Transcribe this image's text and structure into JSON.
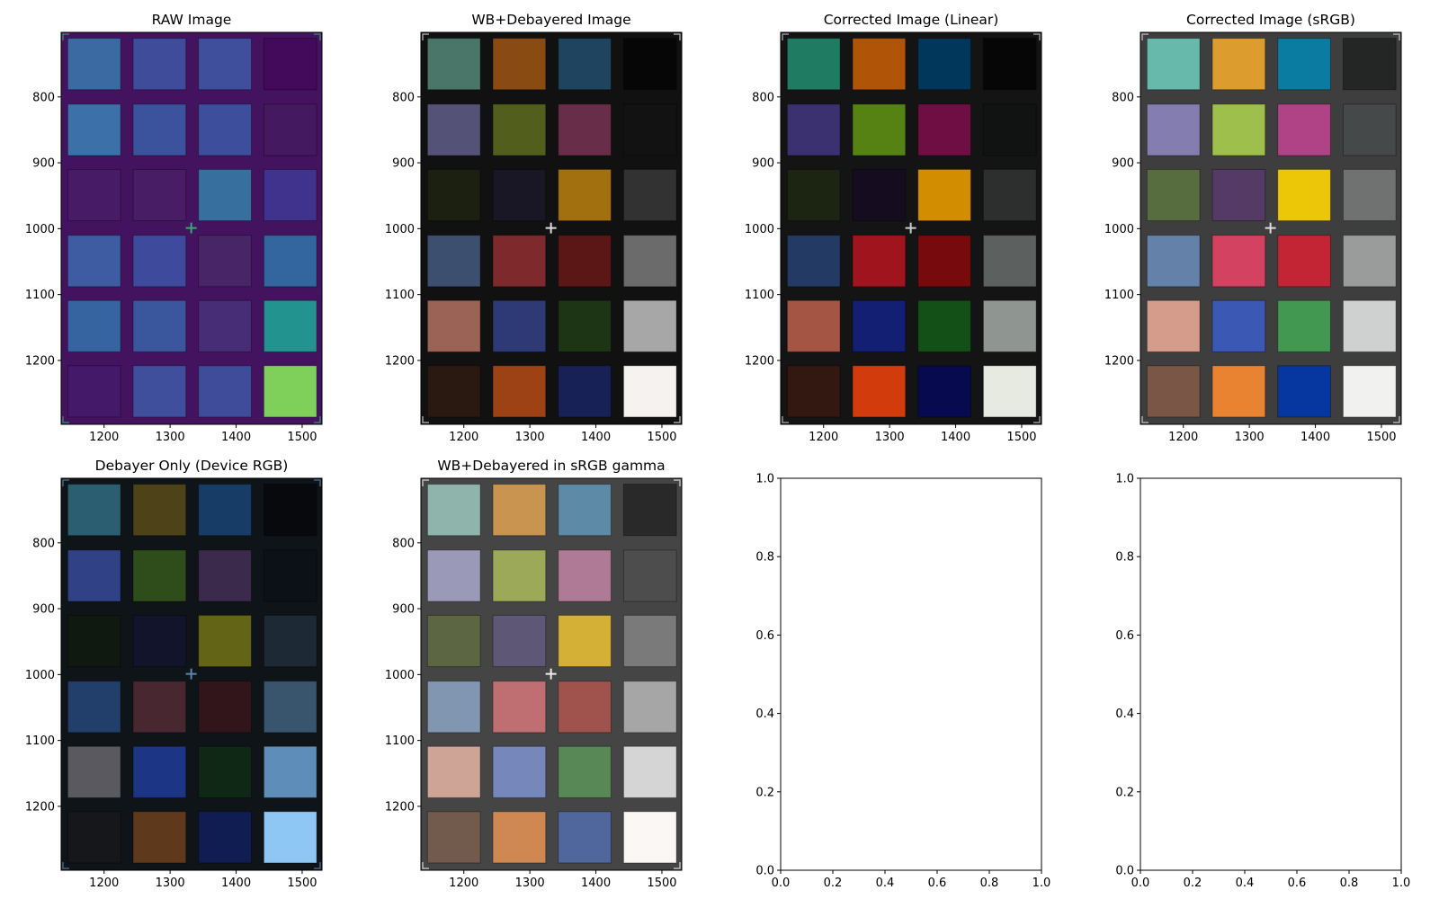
{
  "chart_data": [
    {
      "type": "heatmap",
      "title": "RAW Image",
      "x_ticks": [
        1200,
        1300,
        1400,
        1500
      ],
      "y_ticks": [
        800,
        900,
        1000,
        1100,
        1200
      ],
      "xlim": [
        1135,
        1530
      ],
      "ylim": [
        1297,
        702
      ],
      "background": "#44135f",
      "marker": {
        "x": 1332,
        "y": 999,
        "color": "#3aa57a"
      },
      "swatch_colors": [
        [
          "#3b6aa3",
          "#3f4c9a",
          "#3f4f9c",
          "#430a5c"
        ],
        [
          "#3b70a8",
          "#3b529d",
          "#3d4f9c",
          "#44195f"
        ],
        [
          "#481b66",
          "#481d66",
          "#37709f",
          "#40338d"
        ],
        [
          "#3d5ca1",
          "#3e4a9b",
          "#472567",
          "#33659e"
        ],
        [
          "#3564a0",
          "#3a579e",
          "#462d76",
          "#22938f"
        ],
        [
          "#45196a",
          "#3f4f9c",
          "#3e4c99",
          "#7fd05a"
        ]
      ]
    },
    {
      "type": "heatmap",
      "title": "WB+Debayered Image",
      "x_ticks": [
        1200,
        1300,
        1400,
        1500
      ],
      "y_ticks": [
        800,
        900,
        1000,
        1100,
        1200
      ],
      "xlim": [
        1135,
        1530
      ],
      "ylim": [
        1297,
        702
      ],
      "background": "#111111",
      "marker": {
        "x": 1332,
        "y": 999,
        "color": "#dddddd"
      },
      "swatch_colors": [
        [
          "#4a7569",
          "#8a4b13",
          "#1e4460",
          "#060606"
        ],
        [
          "#545377",
          "#525e1c",
          "#682d48",
          "#121212"
        ],
        [
          "#1b2011",
          "#191626",
          "#a3700f",
          "#323232"
        ],
        [
          "#3c4f6e",
          "#7e2a2c",
          "#5b1716",
          "#6b6b6b"
        ],
        [
          "#9b6355",
          "#2e3a76",
          "#1d3514",
          "#a7a7a7"
        ],
        [
          "#2a1911",
          "#9d4214",
          "#172156",
          "#f6f2ef"
        ]
      ]
    },
    {
      "type": "heatmap",
      "title": "Corrected Image (Linear)",
      "x_ticks": [
        1200,
        1300,
        1400,
        1500
      ],
      "y_ticks": [
        800,
        900,
        1000,
        1100,
        1200
      ],
      "xlim": [
        1135,
        1530
      ],
      "ylim": [
        1297,
        702
      ],
      "background": "#141414",
      "marker": {
        "x": 1332,
        "y": 999,
        "color": "#cccccc"
      },
      "swatch_colors": [
        [
          "#207b63",
          "#b05408",
          "#00375a",
          "#060606"
        ],
        [
          "#3b3070",
          "#568214",
          "#6e0e42",
          "#111312"
        ],
        [
          "#1b2511",
          "#150c20",
          "#d38e00",
          "#2d2f2e"
        ],
        [
          "#233a64",
          "#a0141e",
          "#760a0c",
          "#5c605e"
        ],
        [
          "#a45544",
          "#121f72",
          "#135017",
          "#8f9591"
        ],
        [
          "#331711",
          "#d23b0b",
          "#070a4e",
          "#e7eae0"
        ]
      ]
    },
    {
      "type": "heatmap",
      "title": "Corrected Image (sRGB)",
      "x_ticks": [
        1200,
        1300,
        1400,
        1500
      ],
      "y_ticks": [
        800,
        900,
        1000,
        1100,
        1200
      ],
      "xlim": [
        1135,
        1530
      ],
      "ylim": [
        1297,
        702
      ],
      "background": "#3e3e3e",
      "marker": {
        "x": 1332,
        "y": 999,
        "color": "#dddddd"
      },
      "swatch_colors": [
        [
          "#67b9ab",
          "#dc9c2e",
          "#0a7ca1",
          "#242625"
        ],
        [
          "#837db0",
          "#9fbf4d",
          "#b04386",
          "#464949"
        ],
        [
          "#576c3f",
          "#543a65",
          "#ecc708",
          "#707271"
        ],
        [
          "#6482a9",
          "#d34361",
          "#c42534",
          "#999c9b"
        ],
        [
          "#d59c8b",
          "#3b58b5",
          "#429850",
          "#ced1cf"
        ],
        [
          "#7a5646",
          "#e98331",
          "#0637a0",
          "#f1f2ef"
        ]
      ]
    },
    {
      "type": "heatmap",
      "title": "Debayer Only (Device RGB)",
      "x_ticks": [
        1200,
        1300,
        1400,
        1500
      ],
      "y_ticks": [
        800,
        900,
        1000,
        1100,
        1200
      ],
      "xlim": [
        1135,
        1530
      ],
      "ylim": [
        1297,
        702
      ],
      "background": "#0e1418",
      "marker": {
        "x": 1332,
        "y": 999,
        "color": "#5a86b0"
      },
      "swatch_colors": [
        [
          "#2b5e70",
          "#4e4219",
          "#173d67",
          "#07090c"
        ],
        [
          "#304186",
          "#2e4d1b",
          "#3b2a4c",
          "#0c1117"
        ],
        [
          "#0f190f",
          "#11142b",
          "#646416",
          "#1d2a35"
        ],
        [
          "#223e6b",
          "#482731",
          "#31151b",
          "#39556d"
        ],
        [
          "#5a5960",
          "#1c3584",
          "#0f2715",
          "#5d8db8"
        ],
        [
          "#16171a",
          "#5e391b",
          "#101d52",
          "#8ec7f4"
        ]
      ]
    },
    {
      "type": "heatmap",
      "title": "WB+Debayered in sRGB gamma",
      "x_ticks": [
        1200,
        1300,
        1400,
        1500
      ],
      "y_ticks": [
        800,
        900,
        1000,
        1100,
        1200
      ],
      "xlim": [
        1135,
        1530
      ],
      "ylim": [
        1297,
        702
      ],
      "background": "#454545",
      "marker": {
        "x": 1332,
        "y": 999,
        "color": "#eeeeee"
      },
      "swatch_colors": [
        [
          "#8fb4ab",
          "#c8944f",
          "#5d8aa7",
          "#292929"
        ],
        [
          "#9a9ab8",
          "#9ba958",
          "#ae7a95",
          "#4d4d4d"
        ],
        [
          "#5d6643",
          "#5e5776",
          "#d4b036",
          "#7a7a7a"
        ],
        [
          "#8196b1",
          "#bf6f72",
          "#a0524d",
          "#a6a6a6"
        ],
        [
          "#cda496",
          "#7687bc",
          "#588855",
          "#d5d5d5"
        ],
        [
          "#725a4d",
          "#cf8852",
          "#4f679d",
          "#fbf7f4"
        ]
      ]
    },
    {
      "type": "scatter",
      "title": "",
      "x_ticks": [
        "0.0",
        "0.2",
        "0.4",
        "0.6",
        "0.8",
        "1.0"
      ],
      "y_ticks": [
        "0.0",
        "0.2",
        "0.4",
        "0.6",
        "0.8",
        "1.0"
      ],
      "xlim": [
        0,
        1
      ],
      "ylim": [
        0,
        1
      ]
    },
    {
      "type": "scatter",
      "title": "",
      "x_ticks": [
        "0.0",
        "0.2",
        "0.4",
        "0.6",
        "0.8",
        "1.0"
      ],
      "y_ticks": [
        "0.0",
        "0.2",
        "0.4",
        "0.6",
        "0.8",
        "1.0"
      ],
      "xlim": [
        0,
        1
      ],
      "ylim": [
        0,
        1
      ]
    }
  ]
}
